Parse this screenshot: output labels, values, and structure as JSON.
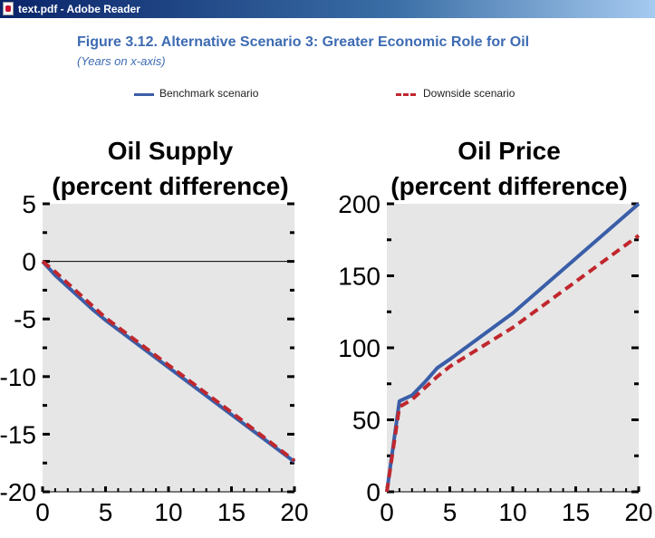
{
  "window": {
    "title": "text.pdf - Adobe Reader"
  },
  "figure": {
    "title": "Figure 3.12.  Alternative Scenario 3: Greater Economic Role for Oil",
    "subtitle": "(Years on x-axis)"
  },
  "legend": {
    "benchmark": "Benchmark scenario",
    "downside": "Downside scenario"
  },
  "colors": {
    "benchmark": "#3a5ea8",
    "downside": "#c0272d",
    "plot_bg": "#e6e6e6",
    "title": "#3d6bb3"
  },
  "chart_data": [
    {
      "type": "line",
      "title": "Oil Supply\n(percent difference)",
      "xlim": [
        0,
        20
      ],
      "ylim": [
        -20,
        5
      ],
      "xticks": [
        0,
        5,
        10,
        15,
        20
      ],
      "yticks": [
        5,
        0,
        -5,
        -10,
        -15,
        -20
      ],
      "zero_line": true,
      "series": [
        {
          "name": "Benchmark scenario",
          "style": "solid",
          "x": [
            0,
            1,
            2,
            3,
            4,
            5,
            10,
            15,
            20
          ],
          "y": [
            0,
            -1.2,
            -2.2,
            -3.2,
            -4.2,
            -5.1,
            -9.2,
            -13.3,
            -17.4
          ]
        },
        {
          "name": "Downside scenario",
          "style": "dashed",
          "x": [
            0,
            1,
            2,
            3,
            4,
            5,
            10,
            15,
            20
          ],
          "y": [
            0,
            -0.9,
            -1.9,
            -2.9,
            -3.9,
            -4.9,
            -9.0,
            -13.1,
            -17.3
          ]
        }
      ]
    },
    {
      "type": "line",
      "title": "Oil Price\n(percent difference)",
      "xlim": [
        0,
        20
      ],
      "ylim": [
        0,
        200
      ],
      "xticks": [
        0,
        5,
        10,
        15,
        20
      ],
      "yticks": [
        200,
        150,
        100,
        50,
        0
      ],
      "zero_line": false,
      "series": [
        {
          "name": "Benchmark scenario",
          "style": "solid",
          "x": [
            0,
            1,
            2,
            3,
            4,
            5,
            10,
            15,
            20
          ],
          "y": [
            0,
            63,
            67,
            76,
            86,
            92,
            124,
            162,
            200
          ]
        },
        {
          "name": "Downside scenario",
          "style": "dashed",
          "x": [
            0,
            1,
            2,
            3,
            4,
            5,
            10,
            15,
            20
          ],
          "y": [
            0,
            59,
            64,
            72,
            80,
            87,
            114,
            146,
            178
          ]
        }
      ]
    }
  ]
}
